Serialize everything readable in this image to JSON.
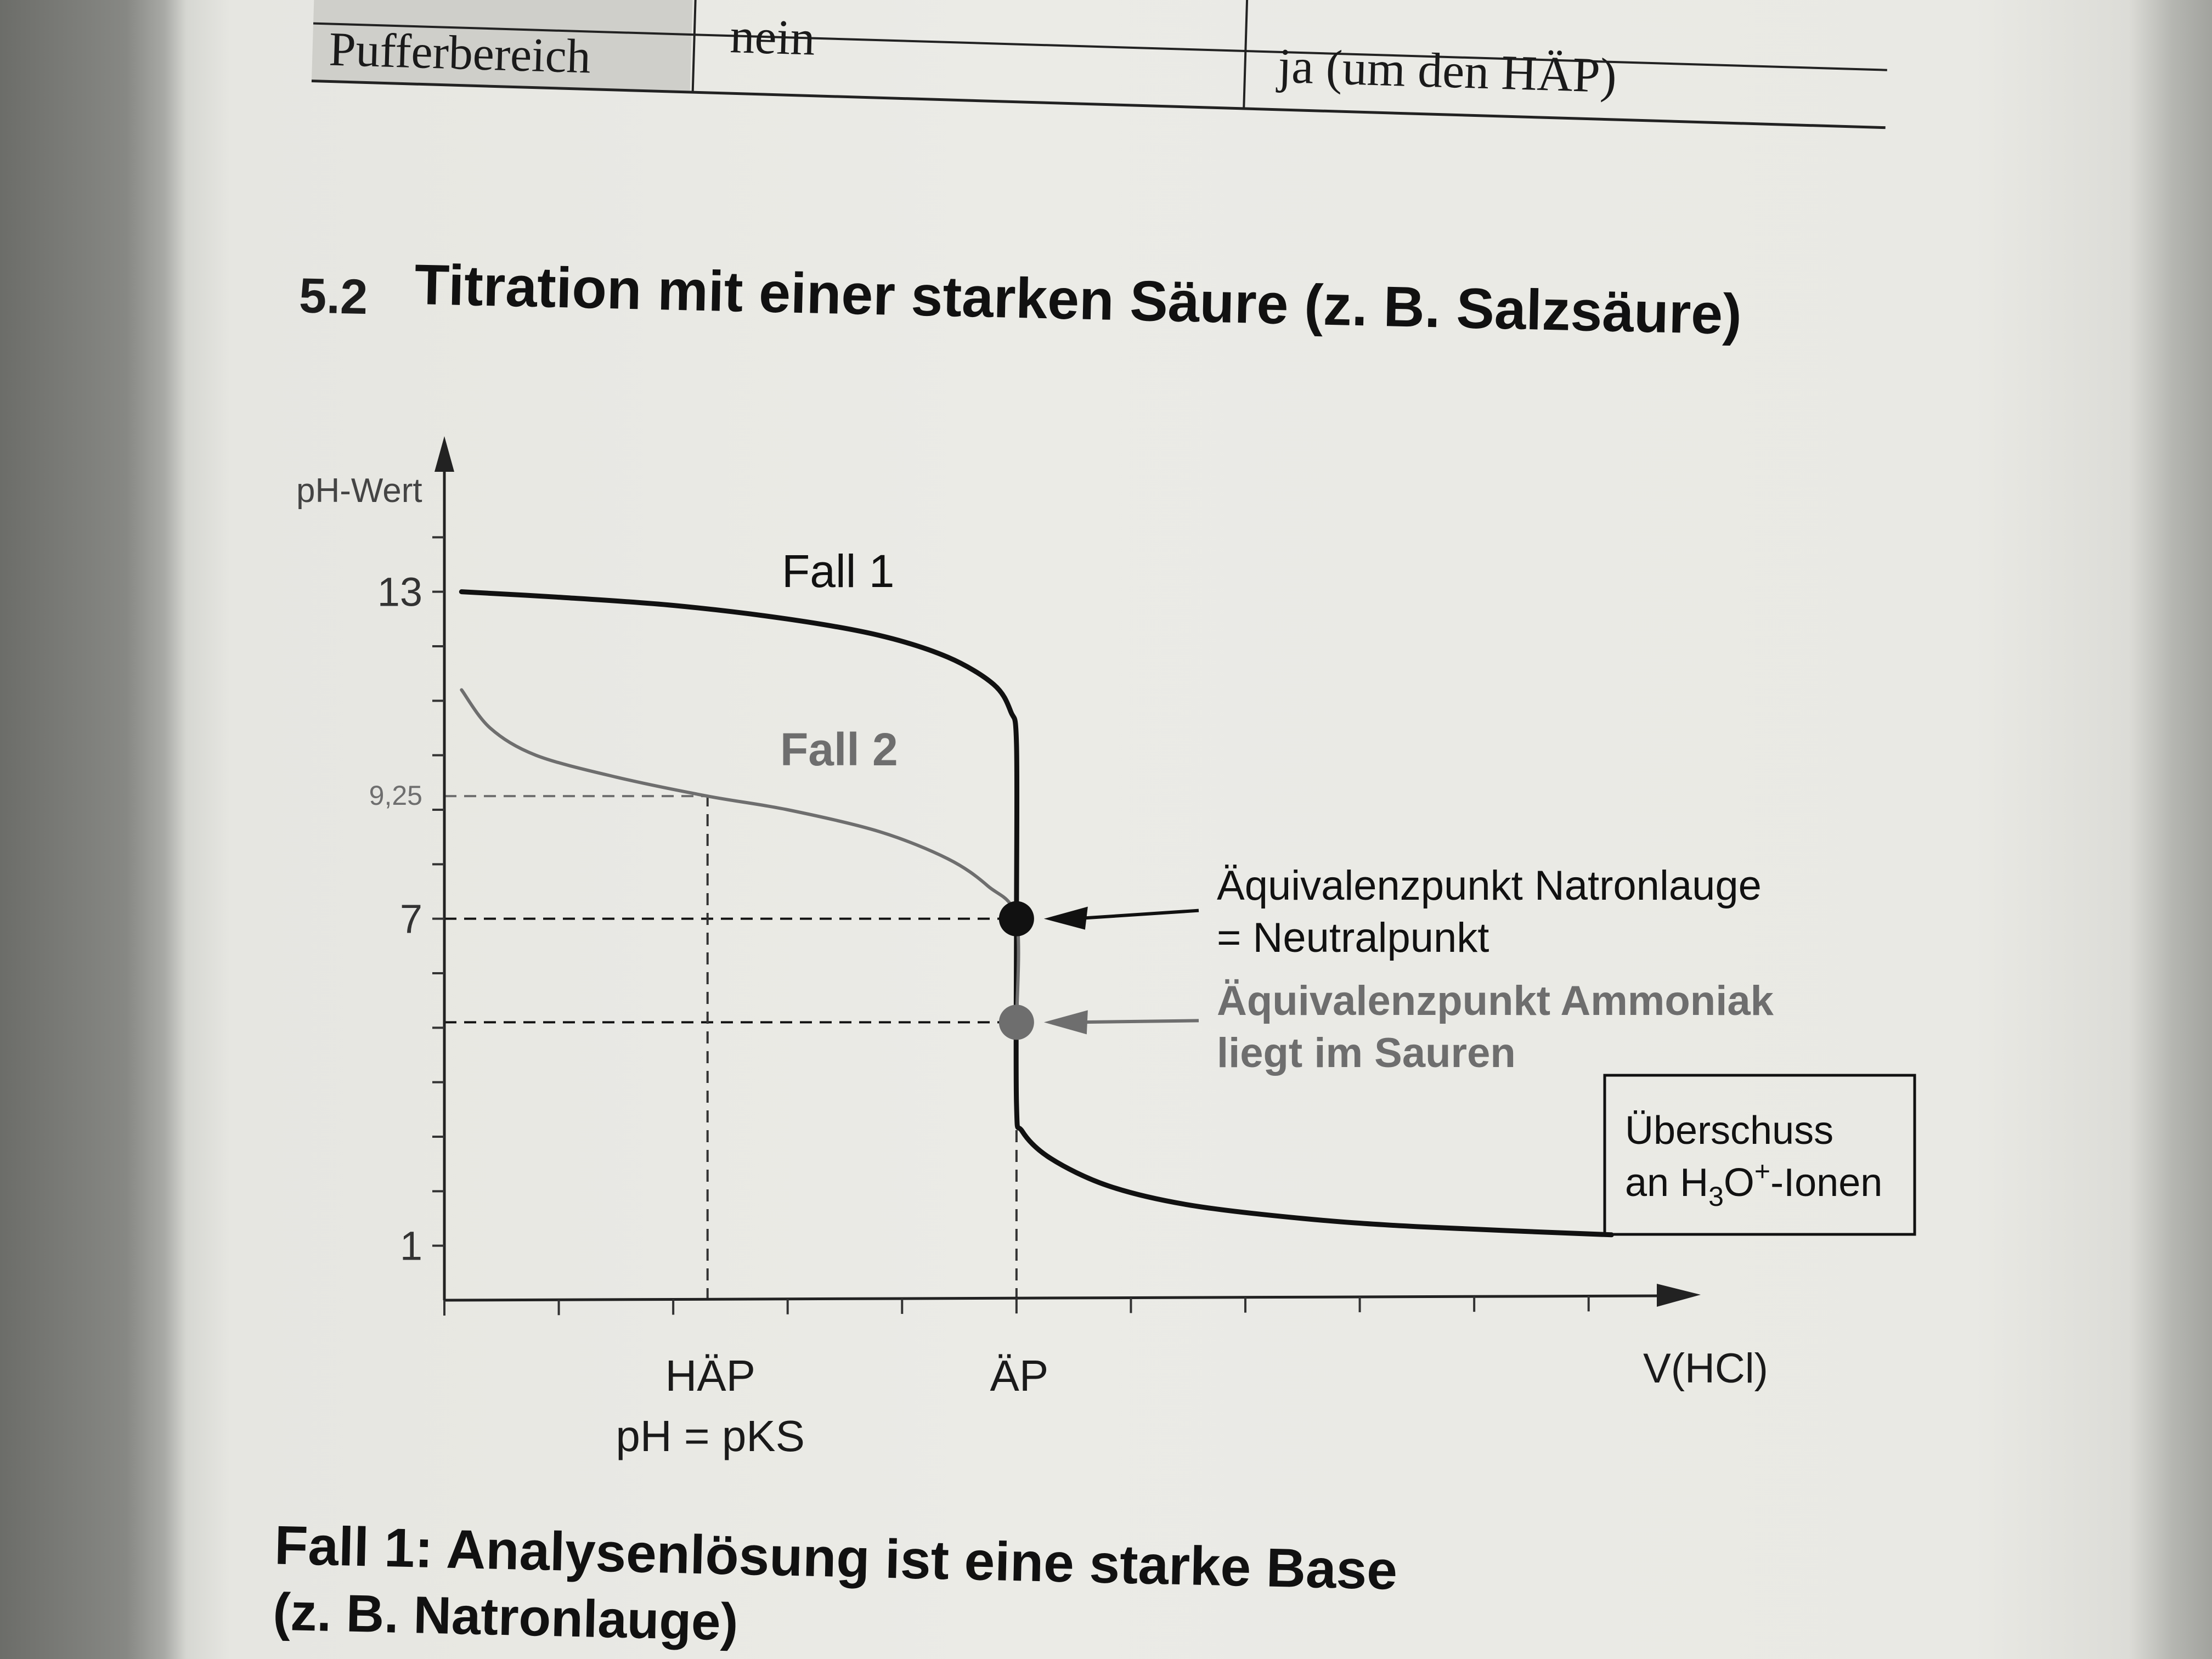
{
  "colors": {
    "paper": "#eaeae5",
    "ink": "#111111",
    "grey_ink": "#6e6e6e",
    "table_header": "#cfcfca"
  },
  "table": {
    "row_label": "Pufferbereich",
    "cell_2": "nein",
    "cell_3": "ja (um den HÄP)"
  },
  "section": {
    "number": "5.2",
    "title": "Titration mit einer starken Säure (z. B. Salzsäure)"
  },
  "chart_data": {
    "type": "line",
    "ylabel": "pH-Wert",
    "xlabel": "V(HCl)",
    "ylim": [
      0,
      15
    ],
    "xlim": [
      0,
      10.5
    ],
    "y_ticks": [
      1,
      2,
      3,
      4,
      5,
      6,
      7,
      8,
      9,
      10,
      11,
      12,
      13,
      14
    ],
    "y_tick_labels": [
      {
        "value": 13,
        "label": "13"
      },
      {
        "value": 9.25,
        "label": "9,25"
      },
      {
        "value": 7,
        "label": "7"
      },
      {
        "value": 1,
        "label": "1"
      }
    ],
    "x_ticks": [
      0,
      1,
      2,
      3,
      4,
      5,
      6,
      7,
      8,
      9,
      10
    ],
    "x_tick_labels": [
      {
        "value": 2.3,
        "lines": [
          "HÄP",
          "pH = pKS"
        ]
      },
      {
        "value": 5,
        "lines": [
          "ÄP"
        ]
      }
    ],
    "series": [
      {
        "name": "Fall 1",
        "color": "#111111",
        "points": [
          [
            0.15,
            13
          ],
          [
            1,
            12.9
          ],
          [
            2,
            12.75
          ],
          [
            3,
            12.5
          ],
          [
            3.8,
            12.2
          ],
          [
            4.4,
            11.8
          ],
          [
            4.8,
            11.3
          ],
          [
            4.95,
            10.8
          ],
          [
            5,
            10.2
          ],
          [
            5,
            7
          ],
          [
            5,
            3.6
          ],
          [
            5.05,
            3.1
          ],
          [
            5.3,
            2.6
          ],
          [
            5.8,
            2.1
          ],
          [
            6.5,
            1.75
          ],
          [
            7.5,
            1.5
          ],
          [
            8.5,
            1.35
          ],
          [
            10.2,
            1.2
          ]
        ]
      },
      {
        "name": "Fall 2",
        "color": "#6e6e6e",
        "points": [
          [
            0.15,
            11.2
          ],
          [
            0.4,
            10.5
          ],
          [
            0.8,
            10
          ],
          [
            1.5,
            9.6
          ],
          [
            2.3,
            9.25
          ],
          [
            3,
            9
          ],
          [
            3.8,
            8.6
          ],
          [
            4.4,
            8.1
          ],
          [
            4.75,
            7.6
          ],
          [
            5,
            7
          ],
          [
            5,
            5.1
          ]
        ]
      }
    ],
    "points": [
      {
        "x": 5,
        "y": 7,
        "color": "#111111"
      },
      {
        "x": 5,
        "y": 5.1,
        "color": "#6e6e6e"
      }
    ],
    "reference_lines": {
      "horizontal": [
        {
          "y": 9.25,
          "x_to": 2.3,
          "color": "#6e6e6e"
        },
        {
          "y": 7,
          "x_to": 5,
          "color": "#111111"
        },
        {
          "y": 5.1,
          "x_to": 5,
          "color": "#111111"
        }
      ],
      "vertical": [
        {
          "x": 2.3,
          "y_to": 9.25
        },
        {
          "x": 5,
          "y_to": 3.6
        }
      ]
    },
    "annotations": {
      "fall1": "Fall 1",
      "fall2": "Fall 2",
      "aep_naoh_line1": "Äquivalenzpunkt Natronlauge",
      "aep_naoh_line2": "= Neutralpunkt",
      "aep_nh3_line1": "Äquivalenzpunkt Ammoniak",
      "aep_nh3_line2": "liegt im Sauren",
      "box_line1": "Überschuss",
      "box_line2_prefix": "an H",
      "box_line2_sub": "3",
      "box_line2_mid": "O",
      "box_line2_sup": "+",
      "box_line2_suffix": "-Ionen"
    }
  },
  "footer": {
    "heading": "Fall 1: Analysenlösung ist eine starke Base",
    "subline": "(z. B. Natronlauge)"
  }
}
